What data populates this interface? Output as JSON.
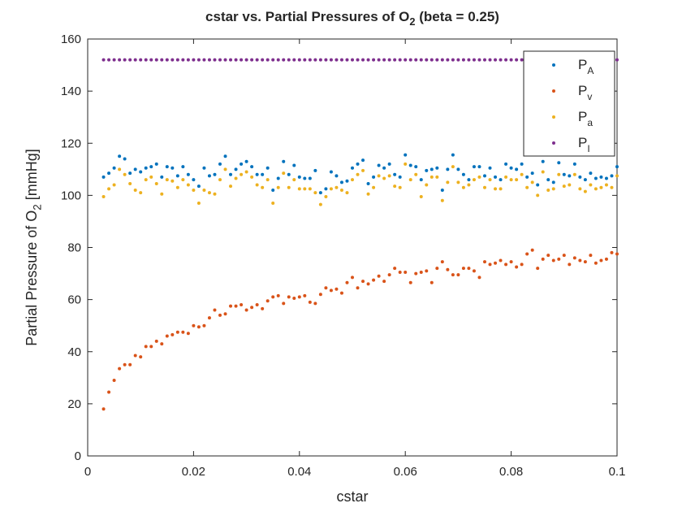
{
  "chart_data": {
    "type": "scatter",
    "title": [
      "cstar vs. Partial Pressures of O",
      "2",
      " (beta = 0.25)"
    ],
    "xlabel": "cstar",
    "ylabel": [
      "Partial Pressure of O",
      "2",
      " [mmHg]"
    ],
    "xlim": [
      0,
      0.1
    ],
    "ylim": [
      0,
      160
    ],
    "xticks": [
      0,
      0.02,
      0.04,
      0.06,
      0.08,
      0.1
    ],
    "yticks": [
      0,
      20,
      40,
      60,
      80,
      100,
      120,
      140,
      160
    ],
    "grid": false,
    "legend": "northeast",
    "x": [
      0.003,
      0.004,
      0.005,
      0.006,
      0.007,
      0.008,
      0.009,
      0.01,
      0.011,
      0.012,
      0.013,
      0.014,
      0.015,
      0.016,
      0.017,
      0.018,
      0.019,
      0.02,
      0.021,
      0.022,
      0.023,
      0.024,
      0.025,
      0.026,
      0.027,
      0.028,
      0.029,
      0.03,
      0.031,
      0.032,
      0.033,
      0.034,
      0.035,
      0.036,
      0.037,
      0.038,
      0.039,
      0.04,
      0.041,
      0.042,
      0.043,
      0.044,
      0.045,
      0.046,
      0.047,
      0.048,
      0.049,
      0.05,
      0.051,
      0.052,
      0.053,
      0.054,
      0.055,
      0.056,
      0.057,
      0.058,
      0.059,
      0.06,
      0.061,
      0.062,
      0.063,
      0.064,
      0.065,
      0.066,
      0.067,
      0.068,
      0.069,
      0.07,
      0.071,
      0.072,
      0.073,
      0.074,
      0.075,
      0.076,
      0.077,
      0.078,
      0.079,
      0.08,
      0.081,
      0.082,
      0.083,
      0.084,
      0.085,
      0.086,
      0.087,
      0.088,
      0.089,
      0.09,
      0.091,
      0.092,
      0.093,
      0.094,
      0.095,
      0.096,
      0.097,
      0.098,
      0.099,
      0.1
    ],
    "series": [
      {
        "name": "P",
        "sub": "A",
        "color": "#0072bd",
        "values": [
          107,
          108.5,
          110.5,
          115,
          114,
          108.5,
          110,
          109,
          110.5,
          111,
          112,
          107,
          111,
          110.5,
          107.5,
          111,
          108,
          106,
          103.5,
          110.5,
          107.5,
          108,
          112,
          115,
          108,
          110,
          112,
          113,
          111,
          108,
          108,
          110.5,
          102,
          106.5,
          113,
          108,
          111.5,
          107,
          106.5,
          106.5,
          109.5,
          101,
          102.5,
          109,
          107.5,
          105,
          105.5,
          110.5,
          112,
          113.5,
          104.5,
          107,
          111.5,
          110.5,
          112,
          108,
          107,
          115.5,
          111.5,
          111,
          106,
          109.5,
          110,
          110.5,
          102,
          110,
          115.5,
          110,
          108,
          106,
          111,
          111,
          107.5,
          110.5,
          107,
          106,
          112,
          110.5,
          110,
          112,
          107,
          108.5,
          104,
          113,
          106,
          105,
          112.5,
          108,
          107.5,
          112,
          107,
          106,
          108.5,
          106.5,
          107,
          106.5,
          107.5,
          111
        ]
      },
      {
        "name": "P",
        "sub": "v",
        "color": "#d95319",
        "values": [
          18,
          24.5,
          29,
          33.5,
          35,
          35,
          38.5,
          38,
          42,
          42,
          44,
          43,
          46,
          46.5,
          47.5,
          47.5,
          47,
          50,
          49.5,
          50,
          53,
          56,
          54,
          54.5,
          57.5,
          57.5,
          58,
          56,
          57,
          58,
          56.5,
          59.5,
          61,
          61.5,
          58.5,
          61,
          60.5,
          61,
          61.5,
          59,
          58.5,
          62,
          64.5,
          63.5,
          64,
          62.5,
          66.5,
          68.5,
          64.5,
          67,
          66,
          67.5,
          69,
          67,
          69.5,
          72,
          70.5,
          70.5,
          66.5,
          70,
          70.5,
          71,
          66.5,
          72,
          74.5,
          71.5,
          69.5,
          69.5,
          72,
          72,
          71,
          68.5,
          74.5,
          73.5,
          74,
          75,
          73.5,
          74.5,
          72.5,
          73.5,
          77.5,
          79,
          72,
          75.5,
          77,
          75,
          75.5,
          77,
          73.5,
          76,
          75,
          74.5,
          77,
          74,
          75,
          75.5,
          78,
          77.5
        ]
      },
      {
        "name": "P",
        "sub": "a",
        "color": "#edb120",
        "values": [
          99.5,
          102.5,
          104,
          110,
          108,
          104.5,
          102,
          101,
          106,
          107,
          104.5,
          100.5,
          106,
          105.5,
          103,
          106,
          104,
          102,
          97,
          102,
          101,
          100.5,
          106,
          110,
          103.5,
          106.5,
          108,
          109,
          107,
          104,
          103,
          106,
          97,
          103,
          108.5,
          103,
          106,
          102.5,
          102.5,
          102.5,
          101,
          96.5,
          99.5,
          102.5,
          103,
          102,
          101,
          106,
          108,
          109.5,
          100.5,
          103,
          107.5,
          106.5,
          107.5,
          103.5,
          103,
          112,
          106,
          108,
          99.5,
          104,
          107,
          107,
          98,
          105,
          111,
          105,
          103,
          104,
          106,
          107,
          103,
          106,
          102.5,
          102.5,
          107,
          106,
          106,
          108,
          103,
          105,
          100,
          109,
          102,
          102.5,
          108,
          103.5,
          104,
          108,
          102.5,
          101.5,
          104,
          102.5,
          103,
          104,
          103,
          107.5
        ]
      },
      {
        "name": "P",
        "sub": "I",
        "color": "#7e2f8e",
        "values": [
          152,
          152,
          152,
          152,
          152,
          152,
          152,
          152,
          152,
          152,
          152,
          152,
          152,
          152,
          152,
          152,
          152,
          152,
          152,
          152,
          152,
          152,
          152,
          152,
          152,
          152,
          152,
          152,
          152,
          152,
          152,
          152,
          152,
          152,
          152,
          152,
          152,
          152,
          152,
          152,
          152,
          152,
          152,
          152,
          152,
          152,
          152,
          152,
          152,
          152,
          152,
          152,
          152,
          152,
          152,
          152,
          152,
          152,
          152,
          152,
          152,
          152,
          152,
          152,
          152,
          152,
          152,
          152,
          152,
          152,
          152,
          152,
          152,
          152,
          152,
          152,
          152,
          152,
          152,
          152,
          152,
          152,
          152,
          152,
          152,
          152,
          152,
          152,
          152,
          152,
          152,
          152,
          152,
          152,
          152,
          152,
          152,
          152
        ]
      }
    ]
  }
}
